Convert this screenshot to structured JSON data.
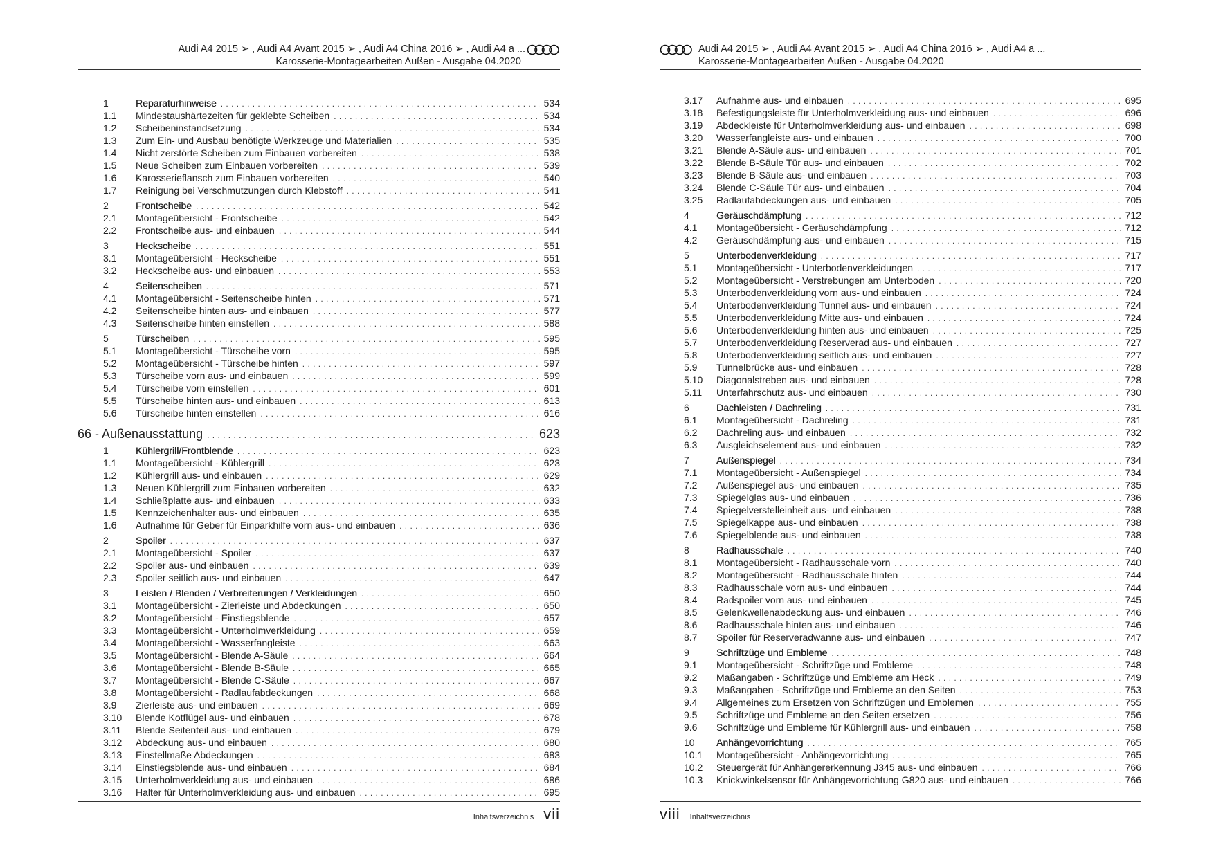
{
  "header": {
    "line1": "Audi A4 2015 ➢ , Audi A4 Avant 2015 ➢ , Audi A4 China 2016 ➢ , Audi A4 a ...",
    "line2": "Karosserie-Montagearbeiten Außen - Ausgabe 04.2020",
    "logo_icon": "audi-rings-logo"
  },
  "pages": [
    {
      "footer_label": "Inhaltsverzeichnis",
      "page_number": "vii",
      "entries": [
        {
          "type": "chapter",
          "num": "1",
          "title": "Reparaturhinweise",
          "page": "534"
        },
        {
          "type": "item",
          "num": "1.1",
          "title": "Mindestaushärtezeiten für geklebte Scheiben",
          "page": "534"
        },
        {
          "type": "item",
          "num": "1.2",
          "title": "Scheibeninstandsetzung",
          "page": "534"
        },
        {
          "type": "item",
          "num": "1.3",
          "title": "Zum Ein- und Ausbau benötigte Werkzeuge und Materialien",
          "page": "535"
        },
        {
          "type": "item",
          "num": "1.4",
          "title": "Nicht zerstörte Scheiben zum Einbauen vorbereiten",
          "page": "538"
        },
        {
          "type": "item",
          "num": "1.5",
          "title": "Neue Scheiben zum Einbauen vorbereiten",
          "page": "539"
        },
        {
          "type": "item",
          "num": "1.6",
          "title": "Karosserieflansch zum Einbauen vorbereiten",
          "page": "540"
        },
        {
          "type": "item",
          "num": "1.7",
          "title": "Reinigung bei Verschmutzungen durch Klebstoff",
          "page": "541"
        },
        {
          "type": "chapter",
          "num": "2",
          "title": "Frontscheibe",
          "page": "542"
        },
        {
          "type": "item",
          "num": "2.1",
          "title": "Montageübersicht - Frontscheibe",
          "page": "542"
        },
        {
          "type": "item",
          "num": "2.2",
          "title": "Frontscheibe aus- und einbauen",
          "page": "544"
        },
        {
          "type": "chapter",
          "num": "3",
          "title": "Heckscheibe",
          "page": "551"
        },
        {
          "type": "item",
          "num": "3.1",
          "title": "Montageübersicht - Heckscheibe",
          "page": "551"
        },
        {
          "type": "item",
          "num": "3.2",
          "title": "Heckscheibe aus- und einbauen",
          "page": "553"
        },
        {
          "type": "chapter",
          "num": "4",
          "title": "Seitenscheiben",
          "page": "571"
        },
        {
          "type": "item",
          "num": "4.1",
          "title": "Montageübersicht - Seitenscheibe hinten",
          "page": "571"
        },
        {
          "type": "item",
          "num": "4.2",
          "title": "Seitenscheibe hinten aus- und einbauen",
          "page": "577"
        },
        {
          "type": "item",
          "num": "4.3",
          "title": "Seitenscheibe hinten einstellen",
          "page": "588"
        },
        {
          "type": "chapter",
          "num": "5",
          "title": "Türscheiben",
          "page": "595"
        },
        {
          "type": "item",
          "num": "5.1",
          "title": "Montageübersicht - Türscheibe vorn",
          "page": "595"
        },
        {
          "type": "item",
          "num": "5.2",
          "title": "Montageübersicht - Türscheibe hinten",
          "page": "597"
        },
        {
          "type": "item",
          "num": "5.3",
          "title": "Türscheibe vorn aus- und einbauen",
          "page": "599"
        },
        {
          "type": "item",
          "num": "5.4",
          "title": "Türscheibe vorn einstellen",
          "page": "601"
        },
        {
          "type": "item",
          "num": "5.5",
          "title": "Türscheibe hinten aus- und einbauen",
          "page": "613"
        },
        {
          "type": "item",
          "num": "5.6",
          "title": "Türscheibe hinten einstellen",
          "page": "616"
        },
        {
          "type": "group",
          "num": "",
          "title": "66 - Außenausstattung",
          "page": "623"
        },
        {
          "type": "chapter",
          "num": "1",
          "title": "Kühlergrill/Frontblende",
          "page": "623"
        },
        {
          "type": "item",
          "num": "1.1",
          "title": "Montageübersicht - Kühlergrill",
          "page": "623"
        },
        {
          "type": "item",
          "num": "1.2",
          "title": "Kühlergrill aus- und einbauen",
          "page": "629"
        },
        {
          "type": "item",
          "num": "1.3",
          "title": "Neuen Kühlergrill zum Einbauen vorbereiten",
          "page": "632"
        },
        {
          "type": "item",
          "num": "1.4",
          "title": "Schließplatte aus- und einbauen",
          "page": "633"
        },
        {
          "type": "item",
          "num": "1.5",
          "title": "Kennzeichenhalter aus- und einbauen",
          "page": "635"
        },
        {
          "type": "item",
          "num": "1.6",
          "title": "Aufnahme für Geber für Einparkhilfe vorn aus- und einbauen",
          "page": "636"
        },
        {
          "type": "chapter",
          "num": "2",
          "title": "Spoiler",
          "page": "637"
        },
        {
          "type": "item",
          "num": "2.1",
          "title": "Montageübersicht - Spoiler",
          "page": "637"
        },
        {
          "type": "item",
          "num": "2.2",
          "title": "Spoiler aus- und einbauen",
          "page": "639"
        },
        {
          "type": "item",
          "num": "2.3",
          "title": "Spoiler seitlich aus- und einbauen",
          "page": "647"
        },
        {
          "type": "chapter",
          "num": "3",
          "title": "Leisten / Blenden / Verbreiterungen / Verkleidungen",
          "page": "650"
        },
        {
          "type": "item",
          "num": "3.1",
          "title": "Montageübersicht - Zierleiste und Abdeckungen",
          "page": "650"
        },
        {
          "type": "item",
          "num": "3.2",
          "title": "Montageübersicht - Einstiegsblende",
          "page": "657"
        },
        {
          "type": "item",
          "num": "3.3",
          "title": "Montageübersicht - Unterholmverkleidung",
          "page": "659"
        },
        {
          "type": "item",
          "num": "3.4",
          "title": "Montageübersicht - Wasserfangleiste",
          "page": "663"
        },
        {
          "type": "item",
          "num": "3.5",
          "title": "Montageübersicht - Blende A-Säule",
          "page": "664"
        },
        {
          "type": "item",
          "num": "3.6",
          "title": "Montageübersicht - Blende B-Säule",
          "page": "665"
        },
        {
          "type": "item",
          "num": "3.7",
          "title": "Montageübersicht - Blende C-Säule",
          "page": "667"
        },
        {
          "type": "item",
          "num": "3.8",
          "title": "Montageübersicht - Radlaufabdeckungen",
          "page": "668"
        },
        {
          "type": "item",
          "num": "3.9",
          "title": "Zierleiste aus- und einbauen",
          "page": "669"
        },
        {
          "type": "item",
          "num": "3.10",
          "title": "Blende Kotflügel aus- und einbauen",
          "page": "678"
        },
        {
          "type": "item",
          "num": "3.11",
          "title": "Blende Seitenteil aus- und einbauen",
          "page": "679"
        },
        {
          "type": "item",
          "num": "3.12",
          "title": "Abdeckung aus- und einbauen",
          "page": "680"
        },
        {
          "type": "item",
          "num": "3.13",
          "title": "Einstellmaße Abdeckungen",
          "page": "683"
        },
        {
          "type": "item",
          "num": "3.14",
          "title": "Einstiegsblende aus- und einbauen",
          "page": "684"
        },
        {
          "type": "item",
          "num": "3.15",
          "title": "Unterholmverkleidung aus- und einbauen",
          "page": "686"
        },
        {
          "type": "item",
          "num": "3.16",
          "title": "Halter für Unterholmverkleidung aus- und einbauen",
          "page": "695"
        }
      ]
    },
    {
      "footer_label": "Inhaltsverzeichnis",
      "page_number": "viii",
      "entries": [
        {
          "type": "item",
          "num": "3.17",
          "title": "Aufnahme aus- und einbauen",
          "page": "695"
        },
        {
          "type": "item",
          "num": "3.18",
          "title": "Befestigungsleiste für Unterholmverkleidung aus- und einbauen",
          "page": "696"
        },
        {
          "type": "item",
          "num": "3.19",
          "title": "Abdeckleiste für Unterholmverkleidung aus- und einbauen",
          "page": "698"
        },
        {
          "type": "item",
          "num": "3.20",
          "title": "Wasserfangleiste aus- und einbauen",
          "page": "700"
        },
        {
          "type": "item",
          "num": "3.21",
          "title": "Blende A-Säule aus- und einbauen",
          "page": "701"
        },
        {
          "type": "item",
          "num": "3.22",
          "title": "Blende B-Säule Tür aus- und einbauen",
          "page": "702"
        },
        {
          "type": "item",
          "num": "3.23",
          "title": "Blende B-Säule aus- und einbauen",
          "page": "703"
        },
        {
          "type": "item",
          "num": "3.24",
          "title": "Blende C-Säule Tür aus- und einbauen",
          "page": "704"
        },
        {
          "type": "item",
          "num": "3.25",
          "title": "Radlaufabdeckungen aus- und einbauen",
          "page": "705"
        },
        {
          "type": "chapter",
          "num": "4",
          "title": "Geräuschdämpfung",
          "page": "712"
        },
        {
          "type": "item",
          "num": "4.1",
          "title": "Montageübersicht - Geräuschdämpfung",
          "page": "712"
        },
        {
          "type": "item",
          "num": "4.2",
          "title": "Geräuschdämpfung aus- und einbauen",
          "page": "715"
        },
        {
          "type": "chapter",
          "num": "5",
          "title": "Unterbodenverkleidung",
          "page": "717"
        },
        {
          "type": "item",
          "num": "5.1",
          "title": "Montageübersicht - Unterbodenverkleidungen",
          "page": "717"
        },
        {
          "type": "item",
          "num": "5.2",
          "title": "Montageübersicht - Verstrebungen am Unterboden",
          "page": "720"
        },
        {
          "type": "item",
          "num": "5.3",
          "title": "Unterbodenverkleidung vorn aus- und einbauen",
          "page": "724"
        },
        {
          "type": "item",
          "num": "5.4",
          "title": "Unterbodenverkleidung Tunnel aus- und einbauen",
          "page": "724"
        },
        {
          "type": "item",
          "num": "5.5",
          "title": "Unterbodenverkleidung Mitte aus- und einbauen",
          "page": "724"
        },
        {
          "type": "item",
          "num": "5.6",
          "title": "Unterbodenverkleidung hinten aus- und einbauen",
          "page": "725"
        },
        {
          "type": "item",
          "num": "5.7",
          "title": "Unterbodenverkleidung Reserverad aus- und einbauen",
          "page": "727"
        },
        {
          "type": "item",
          "num": "5.8",
          "title": "Unterbodenverkleidung seitlich aus- und einbauen",
          "page": "727"
        },
        {
          "type": "item",
          "num": "5.9",
          "title": "Tunnelbrücke aus- und einbauen",
          "page": "728"
        },
        {
          "type": "item",
          "num": "5.10",
          "title": "Diagonalstreben aus- und einbauen",
          "page": "728"
        },
        {
          "type": "item",
          "num": "5.11",
          "title": "Unterfahrschutz aus- und einbauen",
          "page": "730"
        },
        {
          "type": "chapter",
          "num": "6",
          "title": "Dachleisten / Dachreling",
          "page": "731"
        },
        {
          "type": "item",
          "num": "6.1",
          "title": "Montageübersicht - Dachreling",
          "page": "731"
        },
        {
          "type": "item",
          "num": "6.2",
          "title": "Dachreling aus- und einbauen",
          "page": "732"
        },
        {
          "type": "item",
          "num": "6.3",
          "title": "Ausgleichselement aus- und einbauen",
          "page": "732"
        },
        {
          "type": "chapter",
          "num": "7",
          "title": "Außenspiegel",
          "page": "734"
        },
        {
          "type": "item",
          "num": "7.1",
          "title": "Montageübersicht - Außenspiegel",
          "page": "734"
        },
        {
          "type": "item",
          "num": "7.2",
          "title": "Außenspiegel aus- und einbauen",
          "page": "735"
        },
        {
          "type": "item",
          "num": "7.3",
          "title": "Spiegelglas aus- und einbauen",
          "page": "736"
        },
        {
          "type": "item",
          "num": "7.4",
          "title": "Spiegelverstelleinheit aus- und einbauen",
          "page": "738"
        },
        {
          "type": "item",
          "num": "7.5",
          "title": "Spiegelkappe aus- und einbauen",
          "page": "738"
        },
        {
          "type": "item",
          "num": "7.6",
          "title": "Spiegelblende aus- und einbauen",
          "page": "738"
        },
        {
          "type": "chapter",
          "num": "8",
          "title": "Radhausschale",
          "page": "740"
        },
        {
          "type": "item",
          "num": "8.1",
          "title": "Montageübersicht - Radhausschale vorn",
          "page": "740"
        },
        {
          "type": "item",
          "num": "8.2",
          "title": "Montageübersicht - Radhausschale hinten",
          "page": "744"
        },
        {
          "type": "item",
          "num": "8.3",
          "title": "Radhausschale vorn aus- und einbauen",
          "page": "744"
        },
        {
          "type": "item",
          "num": "8.4",
          "title": "Radspoiler vorn aus- und einbauen",
          "page": "745"
        },
        {
          "type": "item",
          "num": "8.5",
          "title": "Gelenkwellenabdeckung aus- und einbauen",
          "page": "746"
        },
        {
          "type": "item",
          "num": "8.6",
          "title": "Radhausschale hinten aus- und einbauen",
          "page": "746"
        },
        {
          "type": "item",
          "num": "8.7",
          "title": "Spoiler für Reserveradwanne aus- und einbauen",
          "page": "747"
        },
        {
          "type": "chapter",
          "num": "9",
          "title": "Schriftzüge und Embleme",
          "page": "748"
        },
        {
          "type": "item",
          "num": "9.1",
          "title": "Montageübersicht - Schriftzüge und Embleme",
          "page": "748"
        },
        {
          "type": "item",
          "num": "9.2",
          "title": "Maßangaben - Schriftzüge und Embleme am Heck",
          "page": "749"
        },
        {
          "type": "item",
          "num": "9.3",
          "title": "Maßangaben - Schriftzüge und Embleme an den Seiten",
          "page": "753"
        },
        {
          "type": "item",
          "num": "9.4",
          "title": "Allgemeines zum Ersetzen von Schriftzügen und Emblemen",
          "page": "755"
        },
        {
          "type": "item",
          "num": "9.5",
          "title": "Schriftzüge und Embleme an den Seiten ersetzen",
          "page": "756"
        },
        {
          "type": "item",
          "num": "9.6",
          "title": "Schriftzüge und Embleme für Kühlergrill aus- und einbauen",
          "page": "758"
        },
        {
          "type": "chapter",
          "num": "10",
          "title": "Anhängevorrichtung",
          "page": "765"
        },
        {
          "type": "item",
          "num": "10.1",
          "title": "Montageübersicht - Anhängevorrichtung",
          "page": "765"
        },
        {
          "type": "item",
          "num": "10.2",
          "title": "Steuergerät für Anhängererkennung J345 aus- und einbauen",
          "page": "766"
        },
        {
          "type": "item",
          "num": "10.3",
          "title": "Knickwinkelsensor für Anhängevorrichtung G820 aus- und einbauen",
          "page": "766"
        }
      ]
    }
  ]
}
